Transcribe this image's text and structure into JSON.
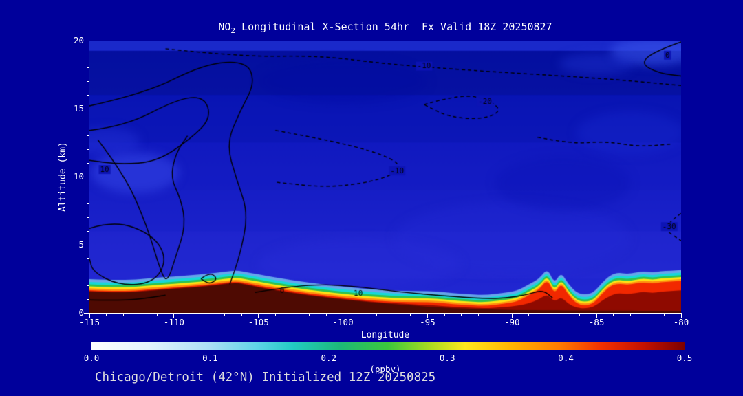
{
  "title": {
    "base": "NO",
    "sub": "2",
    "rest": " Longitudinal X-Section 54hr  Fx Valid 18Z 20250827"
  },
  "footer": "Chicago/Detroit (42°N) Initialized 12Z 20250825",
  "colors": {
    "page_bg": "#00009b",
    "axis": "#ffffff",
    "title_text": "#ffffff",
    "footer_text": "#dcdcdc",
    "contour_line": "#000000"
  },
  "chart_data": {
    "type": "heatmap",
    "title": "NO2 Longitudinal X-Section 54hr  Fx Valid 18Z 20250827",
    "subtitle": "Chicago/Detroit (42°N) Initialized 12Z 20250825",
    "xlabel": "Longitude",
    "ylabel": "Altitude (km)",
    "units": "(ppbv)",
    "xlim": [
      -115,
      -80
    ],
    "ylim": [
      0,
      20
    ],
    "x_ticks": [
      -115,
      -110,
      -105,
      -100,
      -95,
      -90,
      -85,
      -80
    ],
    "y_ticks": [
      0,
      5,
      10,
      15,
      20
    ],
    "x_minor_step": 1,
    "y_minor_step": 1,
    "colorbar_ticks": [
      "0.0",
      "0.1",
      "0.2",
      "0.3",
      "0.4",
      "0.5"
    ],
    "colorbar_stops": [
      [
        0,
        "#ffffff"
      ],
      [
        0.1,
        "#e2f3fd"
      ],
      [
        0.2,
        "#aadef5"
      ],
      [
        0.28,
        "#5ed3e7"
      ],
      [
        0.34,
        "#22cbc3"
      ],
      [
        0.42,
        "#1db878"
      ],
      [
        0.5,
        "#3cc83c"
      ],
      [
        0.57,
        "#a8dc20"
      ],
      [
        0.63,
        "#ffe81e"
      ],
      [
        0.71,
        "#ffb300"
      ],
      [
        0.79,
        "#ff7a00"
      ],
      [
        0.86,
        "#f23000"
      ],
      [
        0.93,
        "#c41200"
      ],
      [
        1,
        "#7c0000"
      ]
    ],
    "background": {
      "top": "#0712b4",
      "bottom": "#2328d4",
      "bands": [
        {
          "km_top": 20,
          "km_bot": 19.25,
          "color": "#2a3cdc",
          "alpha": 0.55
        },
        {
          "km_top": 19.25,
          "km_bot": 16,
          "color": "#000a86",
          "alpha": 0.45
        },
        {
          "km_top": 16,
          "km_bot": 12.5,
          "color": "#0410a8",
          "alpha": 0.35
        },
        {
          "km_top": 12.5,
          "km_bot": 9,
          "color": "#0e18c0",
          "alpha": 0.25
        },
        {
          "km_top": 6,
          "km_bot": 2.5,
          "color": "#2a30d8",
          "alpha": 0.25
        }
      ],
      "patches": [
        {
          "lon": -112.3,
          "km": 10.3,
          "rx": 2.6,
          "ry": 1.5,
          "color": "#3a4cec",
          "alpha": 0.5
        },
        {
          "lon": -114,
          "km": 12.6,
          "rx": 2.0,
          "ry": 1.0,
          "color": "#2838dc",
          "alpha": 0.4
        },
        {
          "lon": -81.6,
          "km": 19.2,
          "rx": 2.6,
          "ry": 1.0,
          "color": "#3a55ec",
          "alpha": 0.6
        },
        {
          "lon": -85,
          "km": 18.3,
          "rx": 2.2,
          "ry": 0.8,
          "color": "#2438d8",
          "alpha": 0.4
        },
        {
          "lon": -83,
          "km": 13.2,
          "rx": 3.2,
          "ry": 1.6,
          "color": "#1a2ad0",
          "alpha": 0.35
        },
        {
          "lon": -90,
          "km": 5.5,
          "rx": 7,
          "ry": 2.6,
          "color": "#262cd6",
          "alpha": 0.3
        },
        {
          "lon": -99,
          "km": 3.6,
          "rx": 6,
          "ry": 1.8,
          "color": "#2a30da",
          "alpha": 0.3
        },
        {
          "lon": -87,
          "km": 9.5,
          "rx": 4,
          "ry": 2,
          "color": "#0a12b4",
          "alpha": 0.35
        },
        {
          "lon": -100,
          "km": 17,
          "rx": 5,
          "ry": 1.6,
          "color": "#0008a0",
          "alpha": 0.35
        }
      ]
    },
    "plume": {
      "below_terrain_color": "#4e0a02",
      "lons": [
        -115,
        -113,
        -111,
        -110,
        -109,
        -108,
        -107,
        -106.3,
        -105.5,
        -104.5,
        -103.5,
        -102.5,
        -101.5,
        -100.5,
        -99.5,
        -98.5,
        -97.5,
        -96.5,
        -95.5,
        -94.5,
        -93.5,
        -92.5,
        -91.5,
        -90.5,
        -89.7,
        -89,
        -88.4,
        -87.9,
        -87.5,
        -87.1,
        -86.7,
        -86.2,
        -85.7,
        -85.2,
        -84.7,
        -84.2,
        -83.7,
        -83.2,
        -82.7,
        -82.2,
        -81.7,
        -81.2,
        -80.6,
        -80
      ],
      "terrain": [
        1.55,
        1.45,
        1.65,
        1.75,
        1.85,
        1.95,
        2.1,
        2.2,
        2.0,
        1.75,
        1.55,
        1.35,
        1.2,
        1.05,
        0.92,
        0.8,
        0.7,
        0.6,
        0.5,
        0.42,
        0.35,
        0.3,
        0.26,
        0.23,
        0.21,
        0.2,
        0.2,
        0.19,
        0.19,
        0.18,
        0.18,
        0.18,
        0.18,
        0.17,
        0.17,
        0.17,
        0.16,
        0.16,
        0.16,
        0.15,
        0.15,
        0.15,
        0.15,
        0.15
      ],
      "bands": [
        {
          "name": "pale-blue",
          "color": "#79c6f0",
          "alpha": 0.8,
          "top": [
            2.47,
            2.37,
            2.57,
            2.67,
            2.77,
            2.87,
            3.02,
            3.12,
            2.95,
            2.7,
            2.5,
            2.3,
            2.15,
            2.0,
            1.87,
            1.75,
            1.65,
            1.6,
            1.6,
            1.57,
            1.45,
            1.35,
            1.31,
            1.48,
            1.61,
            2.1,
            2.5,
            3.29,
            2.15,
            2.98,
            2.18,
            1.48,
            1.33,
            1.47,
            2.17,
            2.77,
            2.96,
            2.86,
            2.96,
            3.05,
            2.95,
            3.05,
            3.1,
            3.15
          ]
        },
        {
          "name": "cyan",
          "color": "#16d8d8",
          "alpha": 1,
          "top": [
            2.27,
            2.17,
            2.37,
            2.47,
            2.57,
            2.67,
            2.82,
            2.92,
            2.75,
            2.5,
            2.3,
            2.1,
            1.95,
            1.8,
            1.67,
            1.55,
            1.45,
            1.4,
            1.4,
            1.37,
            1.25,
            1.15,
            1.11,
            1.28,
            1.41,
            1.9,
            2.3,
            3.09,
            1.95,
            2.78,
            1.98,
            1.28,
            1.13,
            1.27,
            1.97,
            2.57,
            2.76,
            2.66,
            2.76,
            2.85,
            2.75,
            2.85,
            2.9,
            2.95
          ]
        },
        {
          "name": "green",
          "color": "#2fc24f",
          "alpha": 1,
          "top": [
            2.09,
            1.99,
            2.19,
            2.29,
            2.39,
            2.49,
            2.64,
            2.74,
            2.57,
            2.32,
            2.12,
            1.92,
            1.77,
            1.62,
            1.49,
            1.37,
            1.27,
            1.22,
            1.22,
            1.19,
            1.07,
            0.97,
            0.93,
            1.1,
            1.23,
            1.72,
            2.12,
            2.91,
            1.77,
            2.6,
            1.8,
            1.1,
            0.95,
            1.09,
            1.79,
            2.39,
            2.58,
            2.48,
            2.58,
            2.67,
            2.57,
            2.67,
            2.72,
            2.77
          ]
        },
        {
          "name": "yellow",
          "color": "#ffe414",
          "alpha": 1,
          "top": [
            1.94,
            1.84,
            2.04,
            2.14,
            2.24,
            2.34,
            2.49,
            2.59,
            2.42,
            2.17,
            1.97,
            1.77,
            1.62,
            1.47,
            1.34,
            1.22,
            1.12,
            1.07,
            1.07,
            1.04,
            0.92,
            0.82,
            0.78,
            0.95,
            1.08,
            1.57,
            1.97,
            2.76,
            1.62,
            2.45,
            1.65,
            0.95,
            0.8,
            0.94,
            1.64,
            2.24,
            2.43,
            2.33,
            2.43,
            2.52,
            2.42,
            2.52,
            2.57,
            2.62
          ]
        },
        {
          "name": "orange",
          "color": "#ff9110",
          "alpha": 1,
          "top": [
            1.8,
            1.7,
            1.9,
            2.0,
            2.1,
            2.2,
            2.35,
            2.45,
            2.28,
            2.03,
            1.83,
            1.63,
            1.48,
            1.33,
            1.2,
            1.08,
            0.98,
            0.93,
            0.93,
            0.9,
            0.78,
            0.68,
            0.64,
            0.81,
            0.94,
            1.43,
            1.83,
            2.62,
            1.48,
            2.31,
            1.51,
            0.81,
            0.66,
            0.8,
            1.5,
            2.1,
            2.29,
            2.19,
            2.29,
            2.38,
            2.28,
            2.38,
            2.43,
            2.48
          ]
        },
        {
          "name": "red",
          "color": "#f22800",
          "alpha": 1,
          "top": [
            1.67,
            1.57,
            1.77,
            1.87,
            1.97,
            2.07,
            2.22,
            2.32,
            2.15,
            1.9,
            1.7,
            1.5,
            1.35,
            1.2,
            1.07,
            0.95,
            0.85,
            0.8,
            0.8,
            0.77,
            0.65,
            0.55,
            0.51,
            0.68,
            0.81,
            1.3,
            1.7,
            2.49,
            1.35,
            2.18,
            1.38,
            0.68,
            0.53,
            0.67,
            1.37,
            1.97,
            2.16,
            2.06,
            2.16,
            2.25,
            2.15,
            2.25,
            2.3,
            2.35
          ]
        },
        {
          "name": "dark-red",
          "color": "#8f0a00",
          "alpha": 1,
          "top": [
            1.6,
            1.5,
            1.7,
            1.8,
            1.9,
            2.0,
            2.15,
            2.25,
            2.05,
            1.8,
            1.6,
            1.4,
            1.25,
            1.1,
            0.97,
            0.85,
            0.75,
            0.68,
            0.62,
            0.54,
            0.45,
            0.38,
            0.34,
            0.43,
            0.51,
            0.7,
            1.0,
            1.39,
            0.8,
            1.18,
            0.68,
            0.38,
            0.33,
            0.42,
            0.87,
            1.27,
            1.46,
            1.36,
            1.46,
            1.55,
            1.45,
            1.55,
            1.6,
            1.65
          ]
        }
      ]
    },
    "contours": [
      {
        "dashed": false,
        "points": [
          [
            -115,
            15.2
          ],
          [
            -111.7,
            16.1
          ],
          [
            -108.2,
            18.3
          ],
          [
            -105.7,
            18.5
          ],
          [
            -105.2,
            16.9
          ],
          [
            -106.1,
            14.8
          ],
          [
            -106.9,
            12.4
          ],
          [
            -106.3,
            9.8
          ],
          [
            -105.6,
            7.3
          ],
          [
            -106.1,
            4.2
          ],
          [
            -106.7,
            2.1
          ]
        ],
        "labels": []
      },
      {
        "dashed": false,
        "points": [
          [
            -115,
            13.4
          ],
          [
            -112.9,
            13.7
          ],
          [
            -109.8,
            15.7
          ],
          [
            -108.2,
            15.9
          ],
          [
            -107.8,
            14.3
          ],
          [
            -109,
            12.8
          ],
          [
            -111,
            11.1
          ],
          [
            -113.2,
            10.9
          ],
          [
            -115,
            11.2
          ]
        ],
        "labels": [
          {
            "text": "10",
            "lon": -114.1,
            "km": 10.5
          }
        ]
      },
      {
        "dashed": false,
        "points": [
          [
            -114.5,
            12.7
          ],
          [
            -112.9,
            10.1
          ],
          [
            -111.6,
            6.4
          ],
          [
            -110.8,
            3.1
          ],
          [
            -110.4,
            2.2
          ],
          [
            -109.9,
            4.1
          ],
          [
            -109.3,
            6.4
          ],
          [
            -109.6,
            8.4
          ],
          [
            -110.2,
            9.9
          ],
          [
            -109.9,
            11.7
          ],
          [
            -109.2,
            13.0
          ]
        ],
        "labels": []
      },
      {
        "dashed": false,
        "points": [
          [
            -115,
            6.2
          ],
          [
            -113.5,
            6.8
          ],
          [
            -111.2,
            5.7
          ],
          [
            -110.4,
            3.9
          ],
          [
            -111.2,
            2.2
          ],
          [
            -113.2,
            2.0
          ],
          [
            -114.8,
            3.0
          ],
          [
            -115,
            4.0
          ]
        ],
        "labels": []
      },
      {
        "dashed": true,
        "points": [
          [
            -110.5,
            19.4
          ],
          [
            -106,
            18.8
          ],
          [
            -101.5,
            18.9
          ],
          [
            -97.5,
            18.3
          ],
          [
            -94.5,
            18.0
          ],
          [
            -91,
            17.7
          ],
          [
            -87,
            17.4
          ],
          [
            -83.5,
            17.1
          ],
          [
            -80,
            16.7
          ]
        ],
        "labels": [
          {
            "text": "-10",
            "lon": -95.2,
            "km": 18.1
          }
        ]
      },
      {
        "dashed": true,
        "points": [
          [
            -104,
            13.4
          ],
          [
            -100,
            12.5
          ],
          [
            -96.9,
            11.3
          ],
          [
            -96.6,
            10.4
          ],
          [
            -98.3,
            9.6
          ],
          [
            -101,
            9.2
          ],
          [
            -104,
            9.6
          ]
        ],
        "labels": [
          {
            "text": "-10",
            "lon": -96.8,
            "km": 10.4
          }
        ]
      },
      {
        "dashed": true,
        "points": [
          [
            -95.2,
            15.3
          ],
          [
            -93,
            16.1
          ],
          [
            -91.3,
            15.6
          ],
          [
            -90.6,
            14.8
          ],
          [
            -91.8,
            14.2
          ],
          [
            -93.8,
            14.4
          ],
          [
            -95.2,
            15.3
          ]
        ],
        "labels": [
          {
            "text": "-20",
            "lon": -91.6,
            "km": 15.5
          }
        ]
      },
      {
        "dashed": false,
        "points": [
          [
            -105.2,
            1.5
          ],
          [
            -102.5,
            2.1
          ],
          [
            -99.5,
            2.0
          ],
          [
            -96.5,
            1.5
          ],
          [
            -93.5,
            1.2
          ],
          [
            -91,
            1.0
          ],
          [
            -89.2,
            1.3
          ],
          [
            -88.2,
            1.7
          ],
          [
            -87.6,
            1.1
          ]
        ],
        "labels": [
          {
            "text": "10",
            "lon": -99.1,
            "km": 1.4
          },
          {
            "text": "0",
            "lon": -103.6,
            "km": 1.6
          }
        ]
      },
      {
        "dashed": false,
        "points": [
          [
            -108.4,
            2.5
          ],
          [
            -107.9,
            3.0
          ],
          [
            -107.4,
            2.5
          ],
          [
            -107.9,
            2.1
          ],
          [
            -108.4,
            2.5
          ]
        ],
        "labels": []
      },
      {
        "dashed": false,
        "points": [
          [
            -80,
            19.9
          ],
          [
            -81.6,
            19.2
          ],
          [
            -82.4,
            18.3
          ],
          [
            -81.3,
            17.6
          ],
          [
            -80,
            17.4
          ]
        ],
        "labels": [
          {
            "text": "0",
            "lon": -80.8,
            "km": 18.9
          }
        ]
      },
      {
        "dashed": true,
        "points": [
          [
            -80,
            7.3
          ],
          [
            -81.2,
            6.3
          ],
          [
            -80,
            5.3
          ]
        ],
        "labels": [
          {
            "text": "-30",
            "lon": -80.7,
            "km": 6.3
          }
        ]
      },
      {
        "dashed": true,
        "points": [
          [
            -88.5,
            12.9
          ],
          [
            -86.5,
            12.4
          ],
          [
            -84.5,
            12.6
          ],
          [
            -82.5,
            12.2
          ],
          [
            -80.5,
            12.4
          ]
        ],
        "labels": []
      },
      {
        "dashed": false,
        "points": [
          [
            -115,
            0.95
          ],
          [
            -113,
            0.9
          ],
          [
            -111.5,
            1.1
          ],
          [
            -110.5,
            1.3
          ]
        ],
        "labels": []
      }
    ]
  }
}
